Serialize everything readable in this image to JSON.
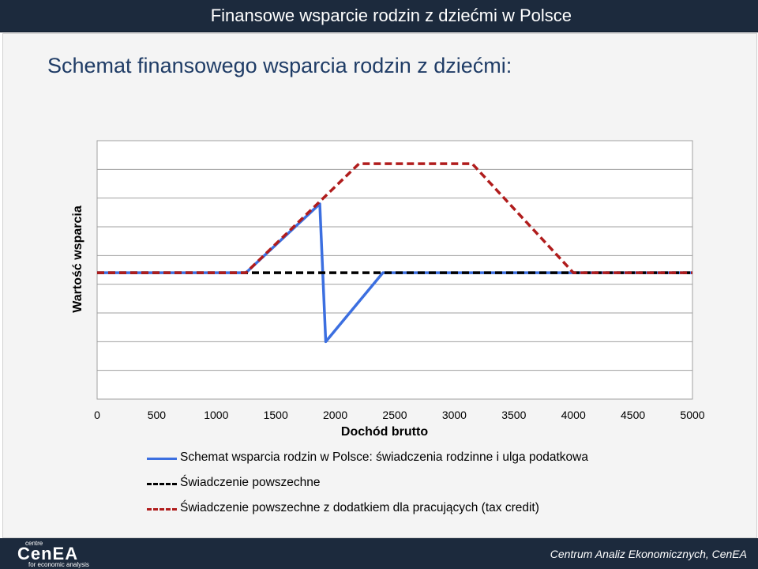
{
  "header": {
    "title": "Finansowe wsparcie rodzin z dziećmi w Polsce"
  },
  "slide": {
    "title": "Schemat finansowego wsparcia rodzin z dziećmi:"
  },
  "footer": {
    "org": "Centrum Analiz Ekonomicznych, CenEA",
    "logo_top": "centre",
    "logo_main": "CenEA",
    "logo_sub": "for economic analysis"
  },
  "colors": {
    "bar": "#1c2a3d",
    "title": "#1f3c66",
    "series_blue": "#3c6fe0",
    "series_black": "#000000",
    "series_red": "#b01c1c"
  },
  "chart_data": {
    "type": "line",
    "xlabel": "Dochód brutto",
    "ylabel": "Wartość wsparcia",
    "xlim": [
      0,
      5000
    ],
    "x_ticks": [
      "0",
      "500",
      "1000",
      "1500",
      "2000",
      "2500",
      "3000",
      "3500",
      "4000",
      "4500",
      "5000"
    ],
    "ylim": [
      0,
      9
    ],
    "grid": true,
    "legend": "bottom",
    "series": [
      {
        "name": "Schemat wsparcia rodzin w Polsce: świadczenia rodzinne i ulga podatkowa",
        "style": "solid",
        "color": "#3c6fe0",
        "points": [
          [
            0,
            4.4
          ],
          [
            1250,
            4.4
          ],
          [
            1870,
            6.8
          ],
          [
            1920,
            2.0
          ],
          [
            2400,
            4.4
          ],
          [
            5000,
            4.4
          ]
        ]
      },
      {
        "name": "Świadczenie powszechne",
        "style": "dashed",
        "color": "#000000",
        "points": [
          [
            0,
            4.4
          ],
          [
            5000,
            4.4
          ]
        ]
      },
      {
        "name": "Świadczenie powszechne z dodatkiem dla pracujących (tax credit)",
        "style": "dashed",
        "color": "#b01c1c",
        "points": [
          [
            0,
            4.4
          ],
          [
            1250,
            4.4
          ],
          [
            2200,
            8.2
          ],
          [
            3150,
            8.2
          ],
          [
            4000,
            4.4
          ],
          [
            5000,
            4.4
          ]
        ]
      }
    ]
  }
}
